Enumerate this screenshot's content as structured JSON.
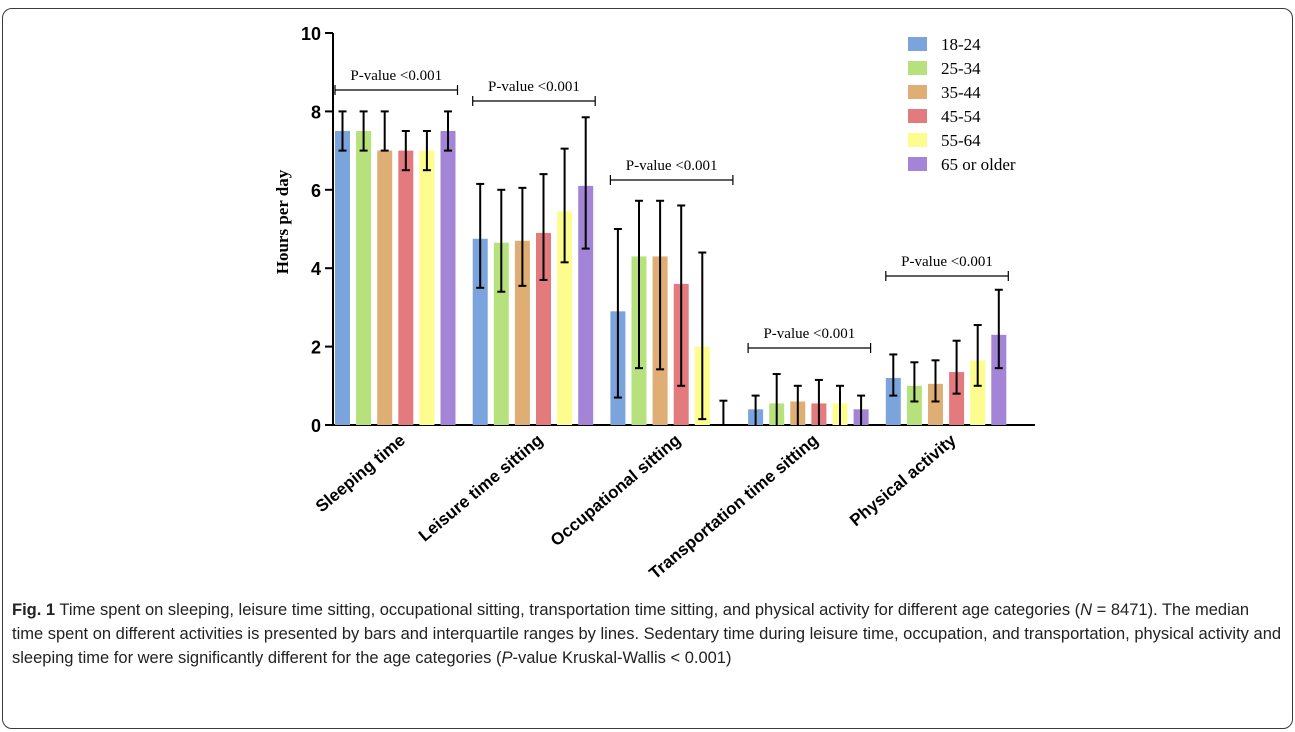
{
  "chart_data": {
    "type": "bar",
    "ylabel": "Hours per day",
    "ylim": [
      0,
      10
    ],
    "yticks": [
      "0",
      "2",
      "4",
      "6",
      "8",
      "10"
    ],
    "categories": [
      "Sleeping time",
      "Leisure time sitting",
      "Occupational sitting",
      "Transportation time sitting",
      "Physical activity"
    ],
    "series": [
      {
        "name": "18-24",
        "color": "#7ba3dc",
        "values": [
          7.5,
          4.75,
          2.9,
          0.4,
          1.2
        ],
        "q1": [
          7.0,
          3.5,
          0.7,
          0.0,
          0.75
        ],
        "q3": [
          8.0,
          6.15,
          5.0,
          0.75,
          1.8
        ]
      },
      {
        "name": "25-34",
        "color": "#b7e17c",
        "values": [
          7.5,
          4.65,
          4.3,
          0.55,
          1.0
        ],
        "q1": [
          7.0,
          3.4,
          1.45,
          0.0,
          0.6
        ],
        "q3": [
          8.0,
          6.0,
          5.72,
          1.3,
          1.6
        ]
      },
      {
        "name": "35-44",
        "color": "#dfae75",
        "values": [
          7.0,
          4.7,
          4.3,
          0.6,
          1.05
        ],
        "q1": [
          7.0,
          3.55,
          1.42,
          0.0,
          0.6
        ],
        "q3": [
          8.0,
          6.05,
          5.72,
          1.0,
          1.65
        ]
      },
      {
        "name": "45-54",
        "color": "#e37a7d",
        "values": [
          7.0,
          4.9,
          3.6,
          0.55,
          1.35
        ],
        "q1": [
          6.5,
          3.7,
          1.0,
          0.0,
          0.8
        ],
        "q3": [
          7.5,
          6.4,
          5.6,
          1.15,
          2.15
        ]
      },
      {
        "name": "55-64",
        "color": "#fcfd8e",
        "values": [
          7.0,
          5.45,
          2.0,
          0.55,
          1.65
        ],
        "q1": [
          6.5,
          4.15,
          0.15,
          0.0,
          1.0
        ],
        "q3": [
          7.5,
          7.05,
          4.4,
          1.0,
          2.55
        ]
      },
      {
        "name": "65 or older",
        "color": "#a384d6",
        "values": [
          7.5,
          6.1,
          0.0,
          0.4,
          2.3
        ],
        "q1": [
          7.0,
          4.5,
          0.0,
          0.0,
          1.45
        ],
        "q3": [
          8.0,
          7.85,
          0.62,
          0.75,
          3.45
        ]
      }
    ],
    "annotations": [
      {
        "text": "P-value <0.001",
        "category": 0
      },
      {
        "text": "P-value <0.001",
        "category": 1
      },
      {
        "text": "P-value <0.001",
        "category": 2
      },
      {
        "text": "P-value <0.001",
        "category": 3
      },
      {
        "text": "P-value <0.001",
        "category": 4
      }
    ],
    "legend_position": "top-right"
  },
  "caption": {
    "label": "Fig. 1",
    "text_1": " Time spent on sleeping, leisure time sitting, occupational sitting, transportation time sitting, and physical activity for different age categories (",
    "n_symbol": "N",
    "text_2": " = 8471). The median time spent on different activities is presented by bars and interquartile ranges by lines. Sedentary time during leisure time, occupation, and transportation, physical activity and sleeping time for were significantly different for the age categories (",
    "p_symbol": "P",
    "text_3": "-value Kruskal-Wallis < 0.001)"
  }
}
